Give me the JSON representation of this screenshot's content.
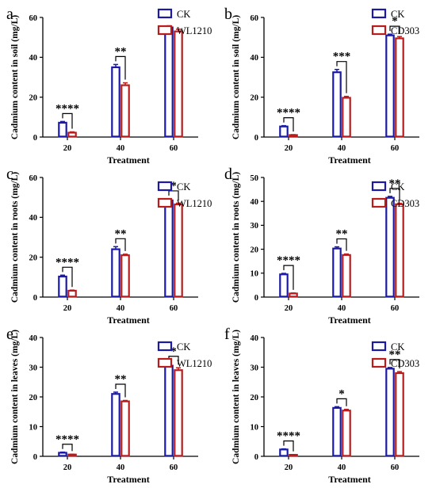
{
  "colors": {
    "ck": "#1a1aa6",
    "treat": "#b81c1c",
    "axis": "#000000"
  },
  "chart_data": [
    {
      "panel": "a",
      "type": "bar",
      "ylabel": "Cadmium content in soil (mg/L)",
      "xlabel": "Treatment",
      "categories": [
        "20",
        "40",
        "60"
      ],
      "ylim": [
        0,
        60
      ],
      "yticks": [
        0,
        20,
        40,
        60
      ],
      "series": [
        {
          "name": "CK",
          "values": [
            7.2,
            35,
            55
          ],
          "errors": [
            0.6,
            1.4,
            0.8
          ]
        },
        {
          "name": "WL1210",
          "values": [
            2.2,
            26,
            53
          ],
          "errors": [
            0.4,
            1.2,
            1.1
          ]
        }
      ],
      "significance": [
        "****",
        "**",
        ""
      ]
    },
    {
      "panel": "b",
      "type": "bar",
      "ylabel": "Cadmium content in soil (mg/L)",
      "xlabel": "Treatment",
      "categories": [
        "20",
        "40",
        "60"
      ],
      "ylim": [
        0,
        60
      ],
      "yticks": [
        0,
        20,
        40,
        60
      ],
      "series": [
        {
          "name": "CK",
          "values": [
            5.3,
            32.5,
            51
          ],
          "errors": [
            0.4,
            1.4,
            0.6
          ]
        },
        {
          "name": "CD303",
          "values": [
            1.0,
            19.7,
            49.5
          ],
          "errors": [
            0.2,
            0.7,
            0.9
          ]
        }
      ],
      "significance": [
        "****",
        "***",
        "*"
      ]
    },
    {
      "panel": "c",
      "type": "bar",
      "ylabel": "Cadmium content in roots (mg/L)",
      "xlabel": "Treatment",
      "categories": [
        "20",
        "40",
        "60"
      ],
      "ylim": [
        0,
        60
      ],
      "yticks": [
        0,
        20,
        40,
        60
      ],
      "series": [
        {
          "name": "CK",
          "values": [
            10.3,
            24,
            48.5
          ],
          "errors": [
            0.7,
            1.3,
            0.8
          ]
        },
        {
          "name": "WL1210",
          "values": [
            3.2,
            21,
            46.5
          ],
          "errors": [
            0.3,
            0.5,
            0.6
          ]
        }
      ],
      "significance": [
        "****",
        "**",
        "*"
      ]
    },
    {
      "panel": "d",
      "type": "bar",
      "ylabel": "Cadmium content in roots (mg/L)",
      "xlabel": "Treatment",
      "categories": [
        "20",
        "40",
        "60"
      ],
      "ylim": [
        0,
        50
      ],
      "yticks": [
        0,
        10,
        20,
        30,
        40,
        50
      ],
      "series": [
        {
          "name": "CK",
          "values": [
            9.5,
            20.3,
            41.5
          ],
          "errors": [
            0.4,
            0.7,
            0.6
          ]
        },
        {
          "name": "CD303",
          "values": [
            1.5,
            17.6,
            38.8
          ],
          "errors": [
            0.2,
            0.4,
            0.4
          ]
        }
      ],
      "significance": [
        "****",
        "**",
        "**"
      ]
    },
    {
      "panel": "e",
      "type": "bar",
      "ylabel": "Cadmium content in leaves (mg/L)",
      "xlabel": "Treatment",
      "categories": [
        "20",
        "40",
        "60"
      ],
      "ylim": [
        0,
        40
      ],
      "yticks": [
        0,
        10,
        20,
        30,
        40
      ],
      "series": [
        {
          "name": "CK",
          "values": [
            1.2,
            21,
            30.5
          ],
          "errors": [
            0.2,
            0.6,
            0.5
          ]
        },
        {
          "name": "WL1210",
          "values": [
            0.6,
            18.5,
            29
          ],
          "errors": [
            0.1,
            0.3,
            0.8
          ]
        }
      ],
      "significance": [
        "****",
        "**",
        "*"
      ]
    },
    {
      "panel": "f",
      "type": "bar",
      "ylabel": "Cadmium content in leaves (mg/L)",
      "xlabel": "Treatment",
      "categories": [
        "20",
        "40",
        "60"
      ],
      "ylim": [
        0,
        40
      ],
      "yticks": [
        0,
        10,
        20,
        30,
        40
      ],
      "series": [
        {
          "name": "CK",
          "values": [
            2.3,
            16.3,
            29.5
          ],
          "errors": [
            0.2,
            0.4,
            0.4
          ]
        },
        {
          "name": "CD303",
          "values": [
            0.5,
            15.4,
            28
          ],
          "errors": [
            0.1,
            0.4,
            0.5
          ]
        }
      ],
      "significance": [
        "****",
        "*",
        "**"
      ]
    }
  ]
}
